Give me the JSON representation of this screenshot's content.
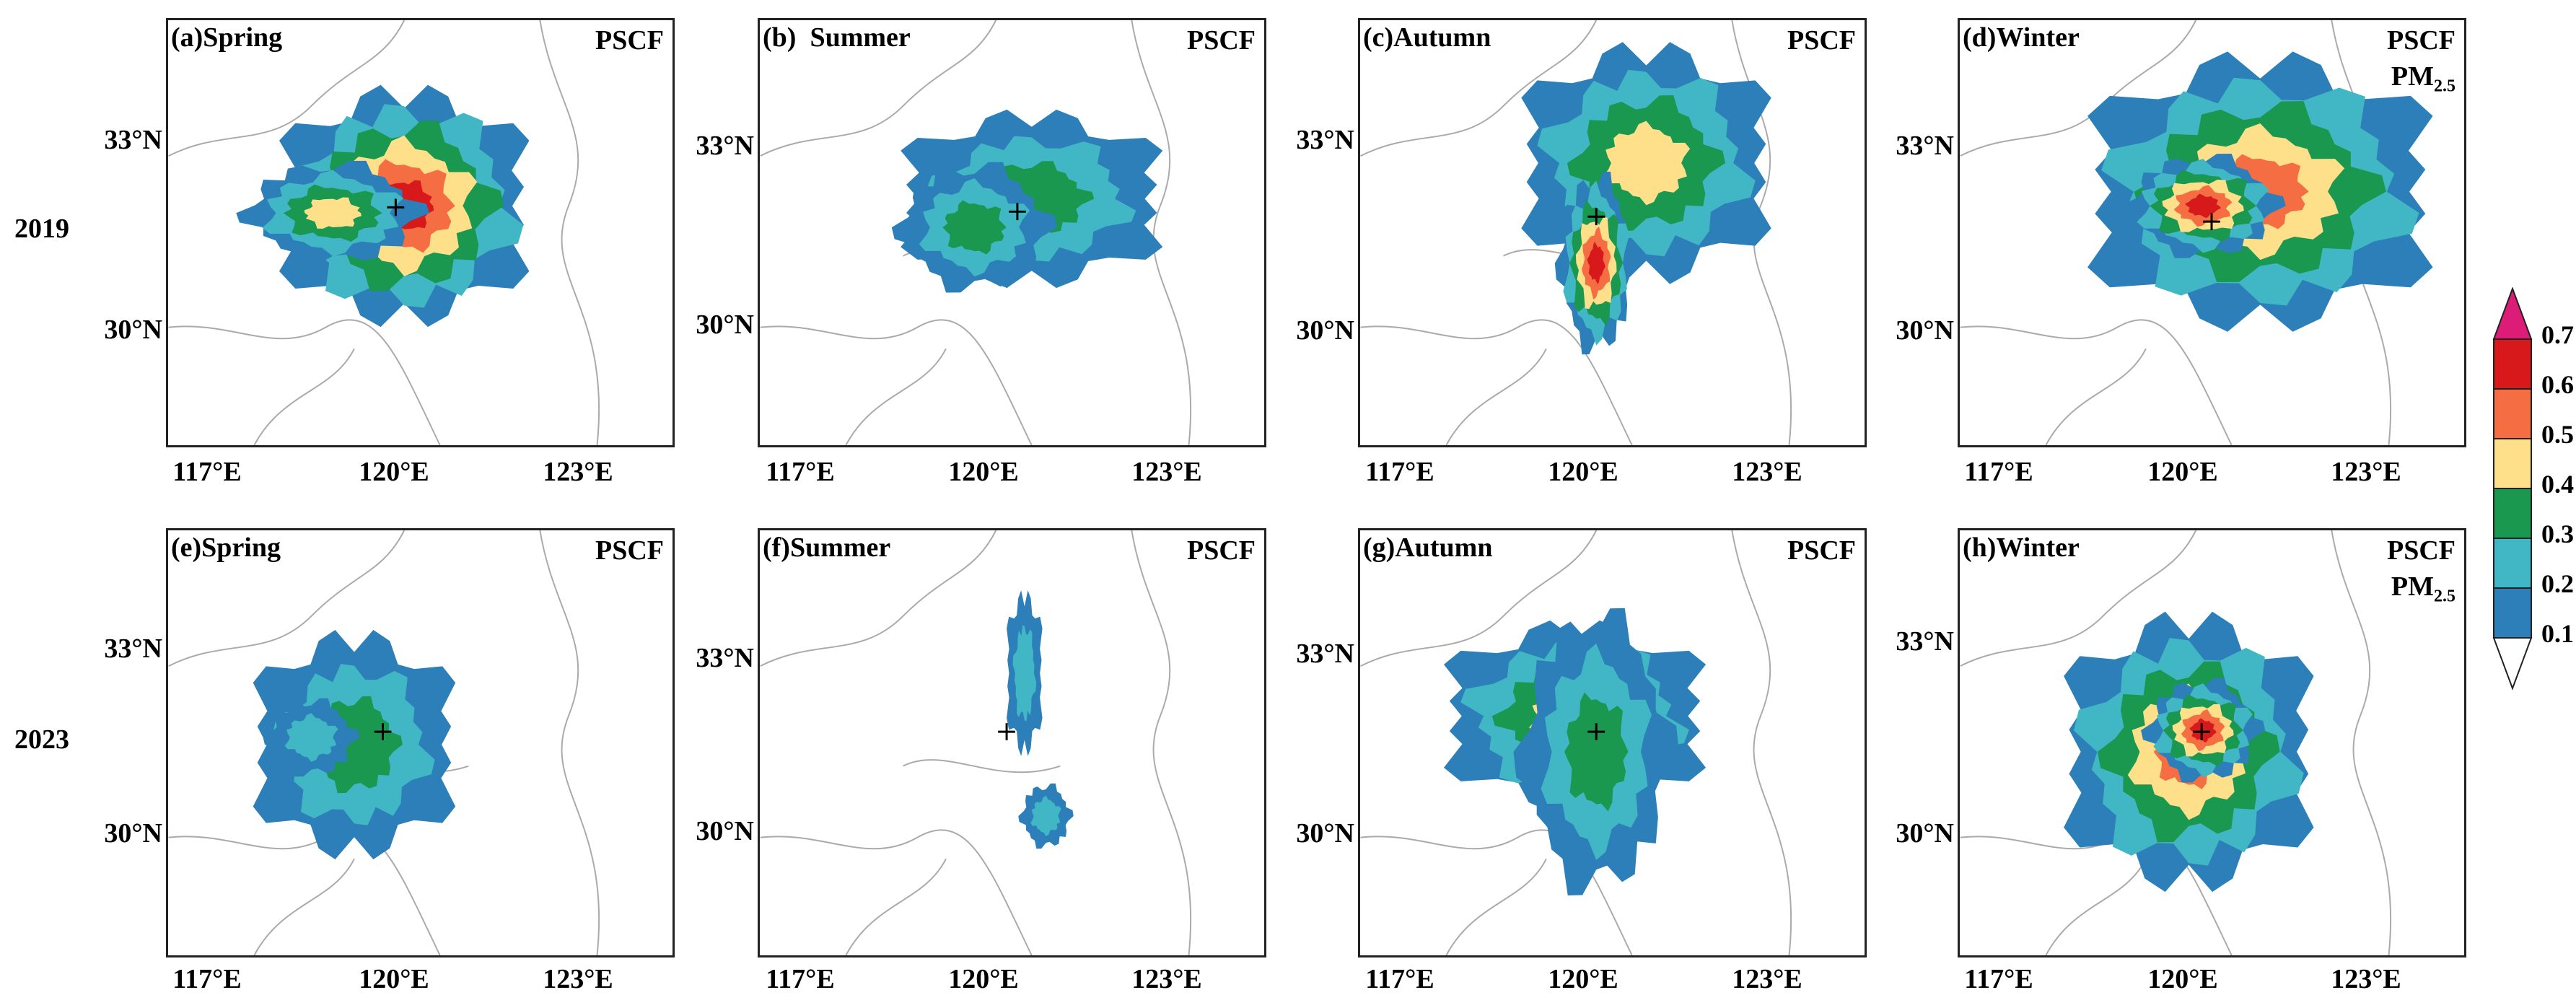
{
  "years": [
    "2019",
    "2023"
  ],
  "panels": [
    {
      "label": "(a)Spring",
      "pscf": "PSCF"
    },
    {
      "label": "(b)  Summer",
      "pscf": "PSCF"
    },
    {
      "label": "(c)Autumn",
      "pscf": "PSCF"
    },
    {
      "label": "(d)Winter",
      "pscf": "PSCF",
      "pm": "PM",
      "pm_sub": "2.5"
    },
    {
      "label": "(e)Spring",
      "pscf": "PSCF"
    },
    {
      "label": "(f)Summer",
      "pscf": "PSCF"
    },
    {
      "label": "(g)Autumn",
      "pscf": "PSCF"
    },
    {
      "label": "(h)Winter",
      "pscf": "PSCF",
      "pm": "PM",
      "pm_sub": "2.5"
    }
  ],
  "lat_ticks": [
    "33°N",
    "30°N"
  ],
  "lon_ticks": [
    "117°E",
    "120°E",
    "123°E"
  ],
  "colorbar": {
    "ticks": [
      "0.7",
      "0.6",
      "0.5",
      "0.4",
      "0.3",
      "0.2",
      "0.1"
    ],
    "colors": [
      "#d7191c",
      "#f46d43",
      "#fee08b",
      "#1a9850",
      "#41b6c4",
      "#2c7fb8"
    ],
    "extend_colors": [
      "#dd1c77",
      "#ffffff"
    ]
  }
}
